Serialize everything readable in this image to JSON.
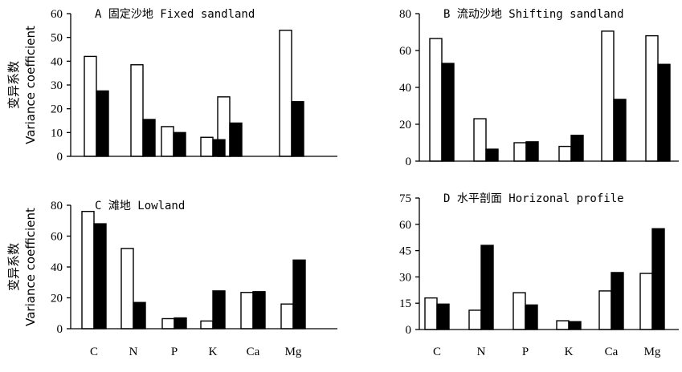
{
  "chart_data": [
    {
      "type": "bar",
      "title": "A  固定沙地 Fixed sandland",
      "ylabel_cn": "变异系数",
      "ylabel_en": "Variance coefficient",
      "categories": [
        "C",
        "N",
        "P",
        "K",
        "Ca",
        "Mg"
      ],
      "show_x_ticks": false,
      "ylim": [
        0,
        60
      ],
      "yticks": [
        0,
        10,
        20,
        30,
        40,
        50,
        60
      ],
      "series": [
        {
          "style": "open",
          "values": [
            42,
            38.5,
            12.5,
            8,
            25,
            53
          ]
        },
        {
          "style": "filled",
          "values": [
            27.5,
            15.5,
            10,
            7,
            14,
            23
          ]
        }
      ],
      "legend": "none",
      "grid": false
    },
    {
      "type": "bar",
      "title": "B  流动沙地 Shifting sandland",
      "ylabel_cn": "",
      "ylabel_en": "",
      "categories": [
        "C",
        "N",
        "P",
        "K",
        "Ca",
        "Mg"
      ],
      "show_x_ticks": false,
      "ylim": [
        0,
        80
      ],
      "yticks": [
        0,
        20,
        40,
        60,
        80
      ],
      "series": [
        {
          "style": "open",
          "values": [
            66.5,
            23,
            10,
            8,
            70.5,
            68
          ]
        },
        {
          "style": "filled",
          "values": [
            53,
            6.5,
            10.5,
            14,
            33.5,
            52.5
          ]
        }
      ],
      "legend": "none",
      "grid": false
    },
    {
      "type": "bar",
      "title": "C  滩地  Lowland",
      "ylabel_cn": "变异系数",
      "ylabel_en": "Variance coefficient",
      "categories": [
        "C",
        "N",
        "P",
        "K",
        "Ca",
        "Mg"
      ],
      "show_x_ticks": true,
      "ylim": [
        0,
        80
      ],
      "yticks": [
        0,
        20,
        40,
        60,
        80
      ],
      "series": [
        {
          "style": "open",
          "values": [
            76,
            52,
            6.5,
            5,
            23.5,
            16
          ]
        },
        {
          "style": "filled",
          "values": [
            68,
            17,
            7,
            24.5,
            24,
            44.5
          ]
        }
      ],
      "legend": "none",
      "grid": false
    },
    {
      "type": "bar",
      "title": "D  水平剖面 Horizonal profile",
      "ylabel_cn": "",
      "ylabel_en": "",
      "categories": [
        "C",
        "N",
        "P",
        "K",
        "Ca",
        "Mg"
      ],
      "show_x_ticks": true,
      "ylim": [
        0,
        75
      ],
      "yticks": [
        0,
        15,
        30,
        45,
        60,
        75
      ],
      "series": [
        {
          "style": "open",
          "values": [
            18,
            11,
            21,
            5,
            22,
            32
          ]
        },
        {
          "style": "filled",
          "values": [
            14.5,
            48,
            14,
            4.5,
            32.5,
            57.5
          ]
        }
      ],
      "legend": "none",
      "grid": false
    }
  ]
}
